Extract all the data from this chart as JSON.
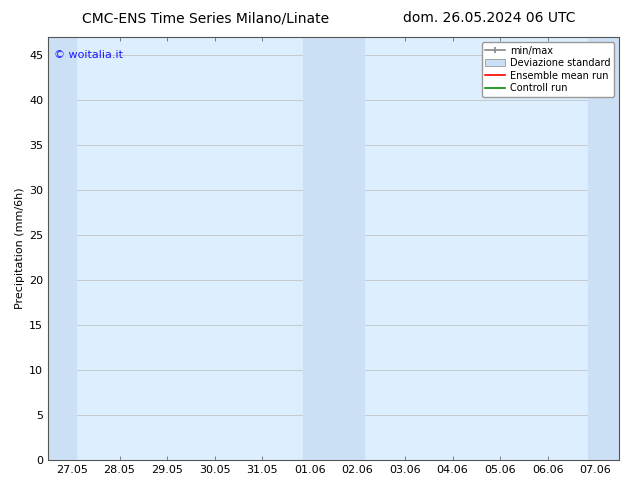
{
  "title_left": "CMC-ENS Time Series Milano/Linate",
  "title_right": "dom. 26.05.2024 06 UTC",
  "ylabel": "Precipitation (mm/6h)",
  "watermark": "© woitalia.it",
  "watermark_color": "#1a1aff",
  "background_color": "#ffffff",
  "plot_bg_color": "#ddeeff",
  "ylim": [
    0,
    47
  ],
  "yticks": [
    0,
    5,
    10,
    15,
    20,
    25,
    30,
    35,
    40,
    45
  ],
  "xtick_labels": [
    "27.05",
    "28.05",
    "29.05",
    "30.05",
    "31.05",
    "01.06",
    "02.06",
    "03.06",
    "04.06",
    "05.06",
    "06.06",
    "07.06"
  ],
  "shaded_regions": [
    {
      "xstart": -0.5,
      "xend": 0.08,
      "color": "#cce0f5"
    },
    {
      "xstart": 4.85,
      "xend": 6.15,
      "color": "#cce0f5"
    },
    {
      "xstart": 10.85,
      "xend": 11.5,
      "color": "#cce0f5"
    }
  ],
  "legend_entries": [
    {
      "label": "min/max",
      "color": "#aaaaaa",
      "style": "line_with_cap"
    },
    {
      "label": "Deviazione standard",
      "color": "#ccddee",
      "style": "filled_box"
    },
    {
      "label": "Ensemble mean run",
      "color": "#ff0000",
      "style": "line"
    },
    {
      "label": "Controll run",
      "color": "#008800",
      "style": "line"
    }
  ],
  "title_fontsize": 10,
  "axis_fontsize": 8,
  "tick_fontsize": 8,
  "watermark_fontsize": 8
}
